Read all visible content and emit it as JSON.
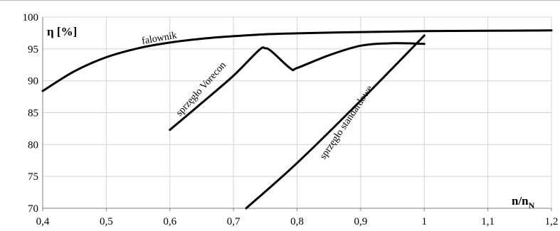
{
  "chart_data": {
    "type": "line",
    "ylabel": "η [%]",
    "xlabel_main": "n/n",
    "xlabel_sub": "N",
    "xlim": [
      0.4,
      1.2
    ],
    "ylim": [
      70,
      100
    ],
    "x_ticks": [
      0.4,
      0.5,
      0.6,
      0.7,
      0.8,
      0.9,
      1.0,
      1.1,
      1.2
    ],
    "x_tick_labels": [
      "0,4",
      "0,5",
      "0,6",
      "0,7",
      "0,8",
      "0,9",
      "1",
      "1,1",
      "1,2"
    ],
    "y_ticks": [
      70,
      75,
      80,
      85,
      90,
      95,
      100
    ],
    "y_tick_labels": [
      "70",
      "75",
      "80",
      "85",
      "90",
      "95",
      "100"
    ],
    "grid": true,
    "series_color": "#000000",
    "series": [
      {
        "name": "falownik",
        "x": [
          0.4,
          0.45,
          0.5,
          0.55,
          0.6,
          0.65,
          0.7,
          0.75,
          0.8,
          0.9,
          1.0,
          1.1,
          1.2
        ],
        "y": [
          88.4,
          91.5,
          93.7,
          95.1,
          96.0,
          96.6,
          97.0,
          97.3,
          97.45,
          97.65,
          97.8,
          97.85,
          97.9
        ]
      },
      {
        "name": "sprzęgło Vorecon",
        "x": [
          0.6,
          0.65,
          0.7,
          0.74,
          0.75,
          0.76,
          0.79,
          0.8,
          0.85,
          0.9,
          0.95,
          1.0
        ],
        "y": [
          82.3,
          86.5,
          90.8,
          94.8,
          95.1,
          94.6,
          91.9,
          92.0,
          94.0,
          95.5,
          95.9,
          95.8
        ]
      },
      {
        "name": "sprzęgło standardowe",
        "x": [
          0.72,
          0.8,
          0.9,
          1.0
        ],
        "y": [
          70.0,
          77.1,
          86.9,
          97.1
        ]
      }
    ]
  }
}
